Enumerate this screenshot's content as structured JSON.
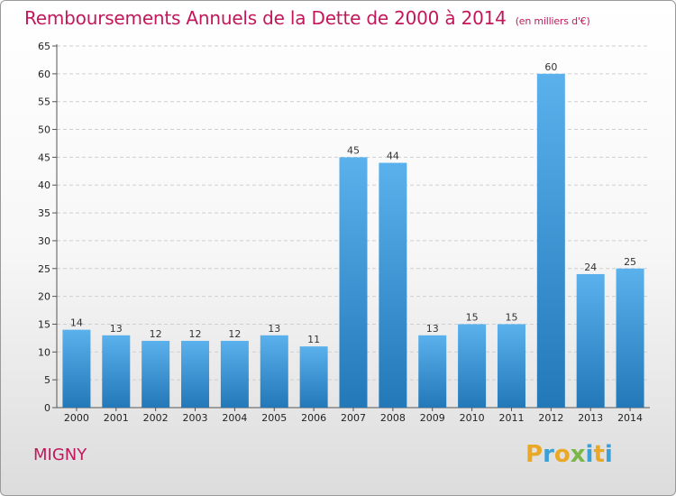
{
  "title": "Remboursements Annuels de la Dette de 2000 à 2014",
  "subtitle": "(en milliers d'€)",
  "commune": "MIGNY",
  "logo": {
    "letters": [
      "P",
      "r",
      "o",
      "x",
      "i",
      "t",
      "i"
    ],
    "colors": [
      "#e9a825",
      "#3aa0d8",
      "#e9a825",
      "#7ab648",
      "#3aa0d8",
      "#e9a825",
      "#3aa0d8"
    ]
  },
  "colors": {
    "bar_light": "#5ab1ec",
    "bar_dark": "#2378b8",
    "title": "#c2185b"
  },
  "chart_data": {
    "type": "bar",
    "categories": [
      "2000",
      "2001",
      "2002",
      "2003",
      "2004",
      "2005",
      "2006",
      "2007",
      "2008",
      "2009",
      "2010",
      "2011",
      "2012",
      "2013",
      "2014"
    ],
    "values": [
      14,
      13,
      12,
      12,
      12,
      13,
      11,
      45,
      44,
      13,
      15,
      15,
      60,
      24,
      25
    ],
    "ylim": [
      0,
      65
    ],
    "yticks": [
      0,
      5,
      10,
      15,
      20,
      25,
      30,
      35,
      40,
      45,
      50,
      55,
      60,
      65
    ],
    "grid": true
  }
}
